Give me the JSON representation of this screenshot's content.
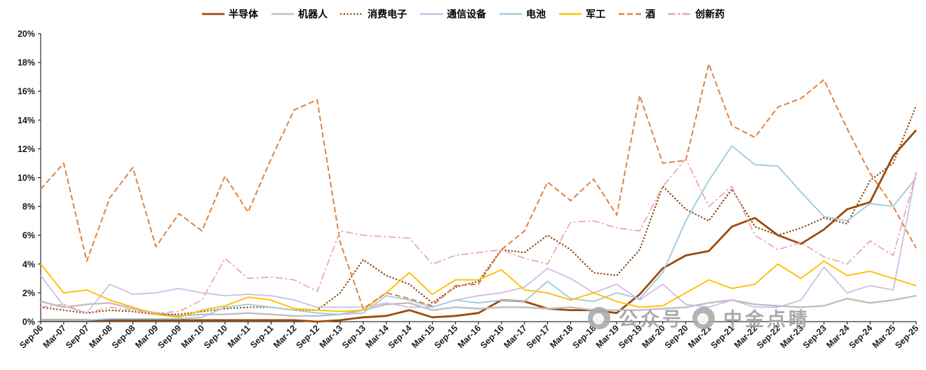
{
  "watermark": {
    "label_1": "公众号",
    "label_2": "中金点睛"
  },
  "chart_data": {
    "type": "line",
    "title": "",
    "xlabel": "",
    "ylabel": "",
    "ylim": [
      0,
      20
    ],
    "y_ticks": [
      0,
      2,
      4,
      6,
      8,
      10,
      12,
      14,
      16,
      18,
      20
    ],
    "y_tick_suffix": "%",
    "grid": false,
    "legend_position": "top",
    "x_tick_labels": [
      "Sep-06",
      "Mar-07",
      "Sep-07",
      "Mar-08",
      "Sep-08",
      "Mar-09",
      "Sep-09",
      "Mar-10",
      "Sep-10",
      "Mar-11",
      "Sep-11",
      "Mar-12",
      "Sep-12",
      "Mar-13",
      "Sep-13",
      "Mar-14",
      "Sep-14",
      "Mar-15",
      "Sep-15",
      "Mar-16",
      "Sep-16",
      "Mar-17",
      "Sep-17",
      "Mar-18",
      "Sep-18",
      "Mar-19",
      "Sep-19",
      "Mar-20",
      "Sep-20",
      "Mar-21",
      "Sep-21",
      "Mar-22",
      "Sep-22",
      "Mar-23",
      "Sep-23",
      "Mar-24",
      "Sep-24",
      "Mar-25",
      "Sep-25"
    ],
    "series": [
      {
        "name": "半导体",
        "color": "#9C4A0B",
        "style": "solid",
        "width": 2.8,
        "values": [
          0.1,
          0.1,
          0.1,
          0.1,
          0.1,
          0.1,
          0.1,
          0.1,
          0.1,
          0.1,
          0.1,
          0.1,
          0.0,
          0.1,
          0.3,
          0.4,
          0.8,
          0.3,
          0.4,
          0.6,
          1.5,
          1.4,
          0.9,
          0.8,
          0.8,
          0.6,
          1.9,
          3.7,
          4.6,
          4.9,
          6.6,
          7.2,
          6.0,
          5.4,
          6.4,
          7.8,
          8.3,
          11.5,
          13.3
        ]
      },
      {
        "name": "机器人",
        "color": "#BFBFBF",
        "style": "solid",
        "width": 2.4,
        "values": [
          1.4,
          1.0,
          1.2,
          1.3,
          0.9,
          0.6,
          0.4,
          0.5,
          0.5,
          0.6,
          0.5,
          0.4,
          0.4,
          0.5,
          0.8,
          1.2,
          1.3,
          0.8,
          1.0,
          0.9,
          1.0,
          1.0,
          0.9,
          1.0,
          0.8,
          0.8,
          0.8,
          0.9,
          1.0,
          1.3,
          1.5,
          1.2,
          1.1,
          1.0,
          1.1,
          1.6,
          1.3,
          1.5,
          1.8
        ]
      },
      {
        "name": "消费电子",
        "color": "#8F4A0E",
        "style": "dotted",
        "width": 2.4,
        "values": [
          1.0,
          0.8,
          0.6,
          0.8,
          0.7,
          0.5,
          0.5,
          0.7,
          0.9,
          1.0,
          1.0,
          0.8,
          0.8,
          2.0,
          4.3,
          3.2,
          2.6,
          1.3,
          2.4,
          2.8,
          5.0,
          4.8,
          6.0,
          5.0,
          3.4,
          3.2,
          5.0,
          9.4,
          7.8,
          7.0,
          9.2,
          6.6,
          6.0,
          6.5,
          7.2,
          6.8,
          9.8,
          11.0,
          15.0
        ]
      },
      {
        "name": "通信设备",
        "color": "#CDBBE4",
        "style": "solid",
        "width": 1.7,
        "values": [
          3.2,
          1.1,
          0.6,
          2.6,
          1.9,
          2.0,
          2.3,
          2.0,
          1.8,
          1.9,
          1.8,
          1.5,
          1.0,
          1.0,
          1.0,
          1.3,
          1.0,
          1.0,
          1.5,
          1.8,
          2.0,
          2.4,
          3.7,
          3.0,
          2.0,
          2.6,
          1.5,
          2.6,
          1.2,
          1.0,
          1.5,
          1.0,
          1.0,
          1.5,
          3.8,
          2.0,
          2.5,
          2.2,
          10.4
        ]
      },
      {
        "name": "电池",
        "color": "#A3CBDC",
        "style": "solid",
        "width": 1.9,
        "values": [
          0.1,
          0.1,
          0.1,
          0.2,
          0.2,
          0.2,
          0.2,
          0.3,
          1.0,
          1.2,
          1.0,
          0.8,
          0.6,
          0.5,
          0.6,
          1.8,
          1.5,
          1.0,
          1.5,
          1.3,
          1.5,
          1.4,
          2.8,
          1.6,
          1.4,
          2.0,
          1.6,
          3.4,
          7.0,
          9.8,
          12.2,
          10.9,
          10.8,
          9.0,
          7.3,
          7.0,
          8.2,
          8.0,
          10.0
        ]
      },
      {
        "name": "军工",
        "color": "#FFC000",
        "style": "solid",
        "width": 1.9,
        "values": [
          4.0,
          2.0,
          2.2,
          1.5,
          1.0,
          0.5,
          0.3,
          0.8,
          1.1,
          1.7,
          1.5,
          0.9,
          0.8,
          0.7,
          0.8,
          2.0,
          3.4,
          1.9,
          2.9,
          2.9,
          3.6,
          2.2,
          2.0,
          1.5,
          2.0,
          1.4,
          1.0,
          1.1,
          2.0,
          2.9,
          2.3,
          2.6,
          4.0,
          3.0,
          4.2,
          3.2,
          3.5,
          3.0,
          2.5
        ]
      },
      {
        "name": "酒",
        "color": "#DE8344",
        "style": "dashed",
        "width": 2.0,
        "values": [
          9.2,
          11.0,
          4.2,
          8.6,
          10.7,
          5.2,
          7.5,
          6.3,
          10.1,
          7.6,
          11.3,
          14.7,
          15.4,
          5.5,
          0.9,
          2.0,
          1.6,
          1.1,
          2.5,
          2.6,
          5.0,
          6.3,
          9.7,
          8.4,
          9.9,
          7.4,
          15.7,
          11.0,
          11.2,
          17.9,
          13.6,
          12.8,
          14.9,
          15.5,
          16.8,
          13.4,
          10.3,
          8.0,
          5.1
        ]
      },
      {
        "name": "创新药",
        "color": "#E9A6AD",
        "style": "dash-dot",
        "width": 1.7,
        "values": [
          1.0,
          1.2,
          0.6,
          1.0,
          0.8,
          0.6,
          0.7,
          1.5,
          4.4,
          3.0,
          3.1,
          2.9,
          2.1,
          6.3,
          6.0,
          5.9,
          5.8,
          4.0,
          4.6,
          4.8,
          5.0,
          4.4,
          4.0,
          6.9,
          7.0,
          6.5,
          6.3,
          9.4,
          11.3,
          8.0,
          9.4,
          6.0,
          5.0,
          5.5,
          4.5,
          4.0,
          5.6,
          4.6,
          10.3
        ]
      }
    ]
  }
}
